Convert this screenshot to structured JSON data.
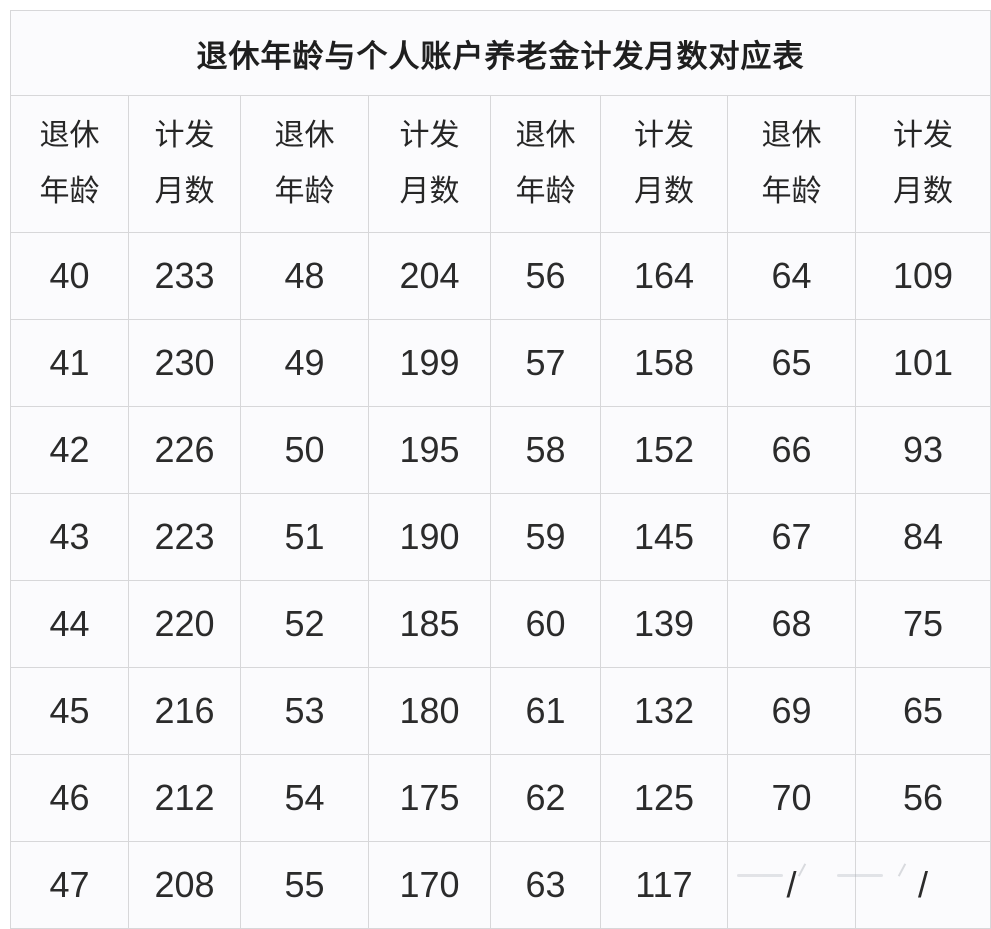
{
  "page": {
    "title": "退休年龄与个人账户养老金计发月数对应表"
  },
  "table": {
    "column_headers": [
      {
        "line1": "退休",
        "line2": "年龄"
      },
      {
        "line1": "计发",
        "line2": "月数"
      },
      {
        "line1": "退休",
        "line2": "年龄"
      },
      {
        "line1": "计发",
        "line2": "月数"
      },
      {
        "line1": "退休",
        "line2": "年龄"
      },
      {
        "line1": "计发",
        "line2": "月数"
      },
      {
        "line1": "退休",
        "line2": "年龄"
      },
      {
        "line1": "计发",
        "line2": "月数"
      }
    ],
    "rows": [
      [
        "40",
        "233",
        "48",
        "204",
        "56",
        "164",
        "64",
        "109"
      ],
      [
        "41",
        "230",
        "49",
        "199",
        "57",
        "158",
        "65",
        "101"
      ],
      [
        "42",
        "226",
        "50",
        "195",
        "58",
        "152",
        "66",
        "93"
      ],
      [
        "43",
        "223",
        "51",
        "190",
        "59",
        "145",
        "67",
        "84"
      ],
      [
        "44",
        "220",
        "52",
        "185",
        "60",
        "139",
        "68",
        "75"
      ],
      [
        "45",
        "216",
        "53",
        "180",
        "61",
        "132",
        "69",
        "65"
      ],
      [
        "46",
        "212",
        "54",
        "175",
        "62",
        "125",
        "70",
        "56"
      ],
      [
        "47",
        "208",
        "55",
        "170",
        "63",
        "117",
        "/",
        "/"
      ]
    ]
  },
  "colors": {
    "cell_background": "#fbfbfd",
    "border": "#d7d7d9",
    "text": "#2b2b2b",
    "title_text": "#1f1f1f"
  }
}
